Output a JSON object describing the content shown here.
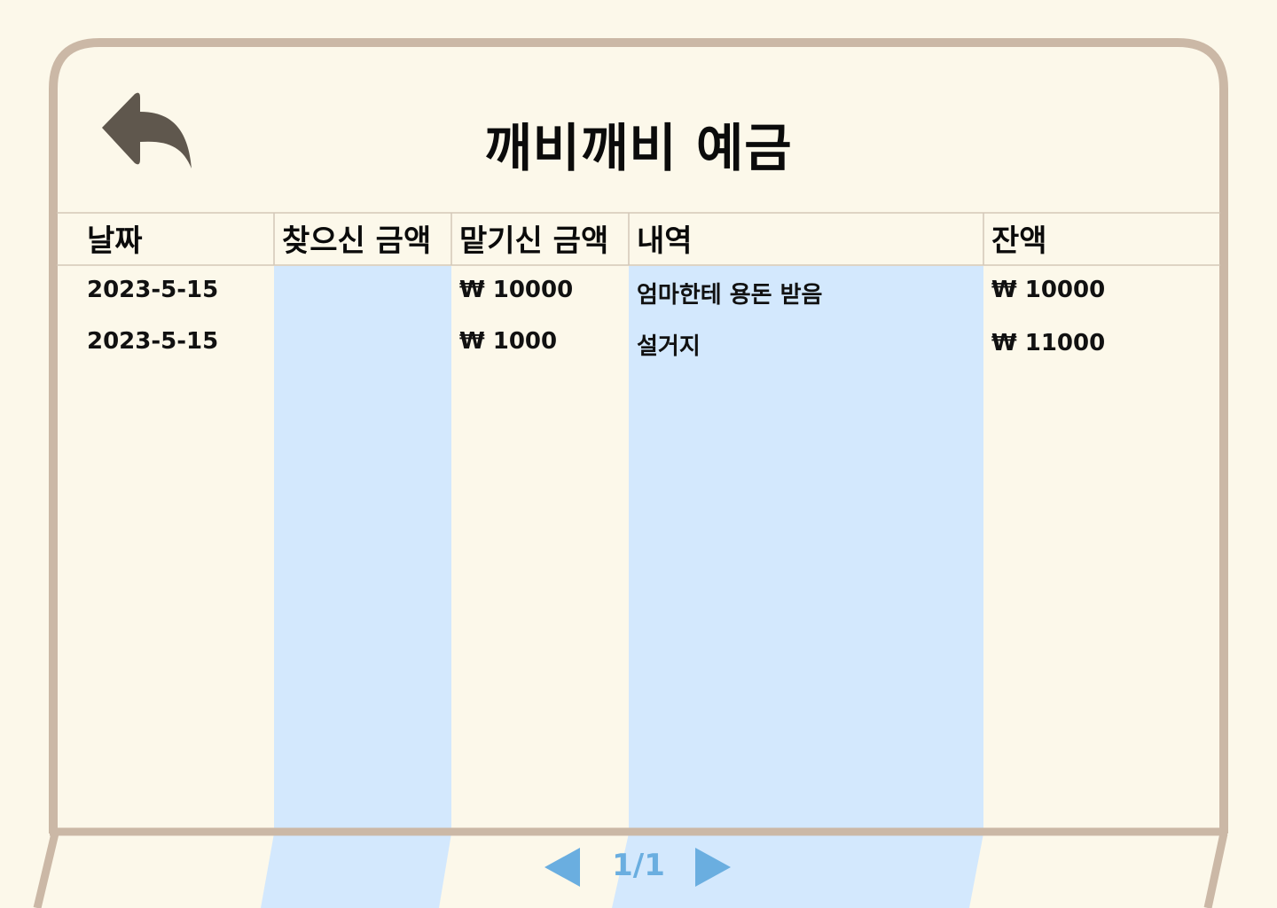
{
  "title": "깨비깨비 예금",
  "colors": {
    "background": "#fcf8ea",
    "frame": "#cbb8a6",
    "highlight_column": "#d3e8fd",
    "icon": "#5f574d",
    "pager": "#6aaee0"
  },
  "back_icon": "undo-arrow-icon",
  "table": {
    "headers": {
      "date": "날짜",
      "withdraw": "찾으신 금액",
      "deposit": "맡기신 금액",
      "description": "내역",
      "balance": "잔액"
    },
    "rows": [
      {
        "date": "2023-5-15",
        "withdraw": "",
        "deposit": "₩ 10000",
        "description": "엄마한테 용돈 받음",
        "balance": "₩ 10000"
      },
      {
        "date": "2023-5-15",
        "withdraw": "",
        "deposit": "₩ 1000",
        "description": "설거지",
        "balance": "₩ 11000"
      }
    ]
  },
  "pagination": {
    "label": "1/1",
    "prev_icon": "triangle-left-icon",
    "next_icon": "triangle-right-icon"
  }
}
